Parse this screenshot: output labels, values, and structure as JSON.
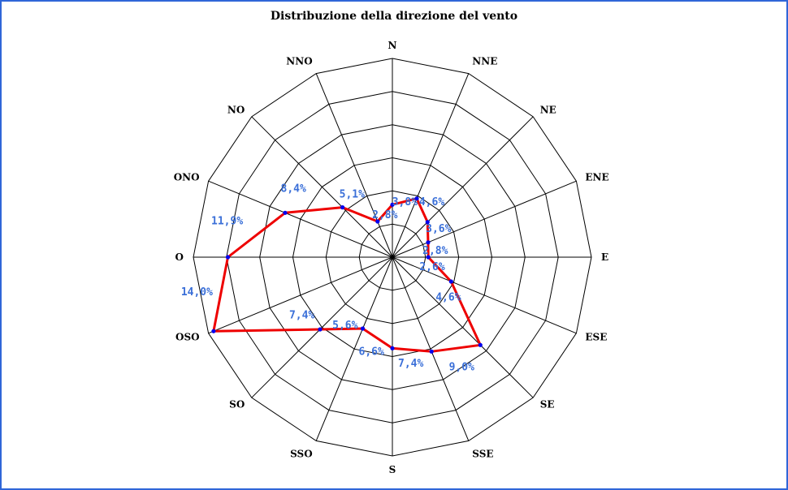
{
  "chart_data": {
    "type": "radar",
    "title": "Distribuzione della direzione del vento",
    "directions": [
      "N",
      "NNE",
      "NE",
      "ENE",
      "E",
      "ESE",
      "SE",
      "SSE",
      "S",
      "SSO",
      "SO",
      "OSO",
      "O",
      "ONO",
      "NO",
      "NNO"
    ],
    "values": [
      3.8,
      4.6,
      3.6,
      2.8,
      2.6,
      4.6,
      9.0,
      7.4,
      6.6,
      5.6,
      7.4,
      14.0,
      11.9,
      8.4,
      5.1,
      2.8
    ],
    "value_labels": [
      "3,8%",
      "4,6%",
      "3,6%",
      "2,8%",
      "2,6%",
      "4,6%",
      "9,0%",
      "7,4%",
      "6,6%",
      "5,6%",
      "7,4%",
      "14,0%",
      "11,9%",
      "8,4%",
      "5,1%",
      "2,8%"
    ],
    "rmax": 14.4,
    "rings": 6,
    "grid": true,
    "colors": {
      "series": "#ee0000",
      "markers": "#0000ee",
      "value_labels": "#3a6fd8",
      "grid": "#000000",
      "border": "#2f66d8"
    }
  }
}
